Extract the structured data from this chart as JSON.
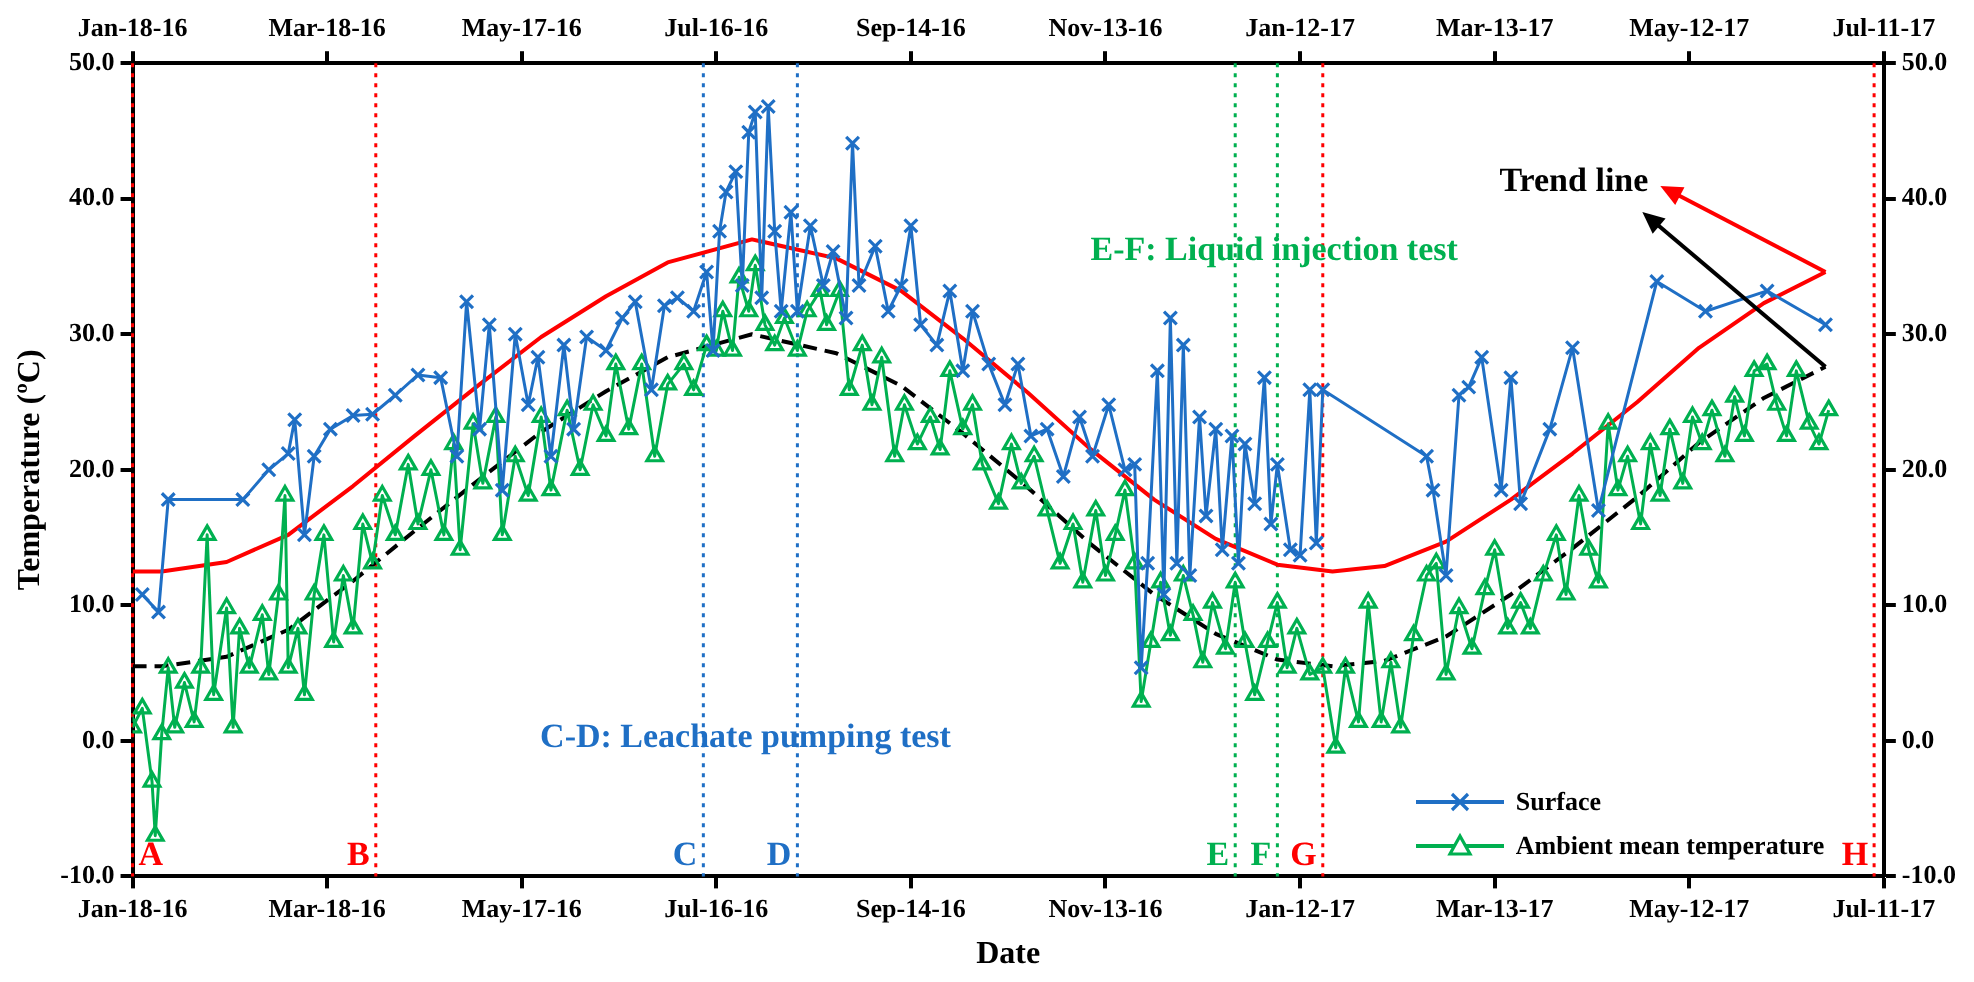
{
  "chart_data": {
    "type": "line",
    "xlabel": "Date",
    "ylabel": "Temperature (ºC)",
    "xlim": [
      "2016-01-18",
      "2017-07-11"
    ],
    "xticks": [
      {
        "value": "2016-01-18",
        "label": "Jan-18-16"
      },
      {
        "value": "2016-03-18",
        "label": "Mar-18-16"
      },
      {
        "value": "2016-05-17",
        "label": "May-17-16"
      },
      {
        "value": "2016-07-16",
        "label": "Jul-16-16"
      },
      {
        "value": "2016-09-14",
        "label": "Sep-14-16"
      },
      {
        "value": "2016-11-13",
        "label": "Nov-13-16"
      },
      {
        "value": "2017-01-12",
        "label": "Jan-12-17"
      },
      {
        "value": "2017-03-13",
        "label": "Mar-13-17"
      },
      {
        "value": "2017-05-12",
        "label": "May-12-17"
      },
      {
        "value": "2017-07-11",
        "label": "Jul-11-17"
      }
    ],
    "x2lim": [
      "2016-01-18",
      "2017-07-11"
    ],
    "x2ticks": [
      {
        "value": "2016-01-18",
        "label": "Jan-18-16"
      },
      {
        "value": "2016-03-18",
        "label": "Mar-18-16"
      },
      {
        "value": "2016-05-17",
        "label": "May-17-16"
      },
      {
        "value": "2016-07-16",
        "label": "Jul-16-16"
      },
      {
        "value": "2016-09-14",
        "label": "Sep-14-16"
      },
      {
        "value": "2016-11-13",
        "label": "Nov-13-16"
      },
      {
        "value": "2017-01-12",
        "label": "Jan-12-17"
      },
      {
        "value": "2017-03-13",
        "label": "Mar-13-17"
      },
      {
        "value": "2017-05-12",
        "label": "May-12-17"
      },
      {
        "value": "2017-07-11",
        "label": "Jul-11-17"
      }
    ],
    "ylim": [
      -10,
      50
    ],
    "yticks": [
      {
        "value": -10,
        "label": "-10.0"
      },
      {
        "value": 0,
        "label": "0.0"
      },
      {
        "value": 10,
        "label": "10.0"
      },
      {
        "value": 20,
        "label": "20.0"
      },
      {
        "value": 30,
        "label": "30.0"
      },
      {
        "value": 40,
        "label": "40.0"
      },
      {
        "value": 50,
        "label": "50.0"
      }
    ],
    "y2lim": [
      -10,
      50
    ],
    "y2ticks": [
      {
        "value": -10,
        "label": "-10.0"
      },
      {
        "value": 0,
        "label": "0.0"
      },
      {
        "value": 10,
        "label": "10.0"
      },
      {
        "value": 20,
        "label": "20.0"
      },
      {
        "value": 30,
        "label": "30.0"
      },
      {
        "value": 40,
        "label": "40.0"
      },
      {
        "value": 50,
        "label": "50.0"
      }
    ],
    "legend": "bottom right",
    "series": [
      {
        "name": "Surface",
        "color": "#1f6fc5",
        "marker": "cross",
        "line_style": "solid",
        "x": [
          "2016-01-21",
          "2016-01-26",
          "2016-01-29",
          "2016-02-21",
          "2016-02-29",
          "2016-03-06",
          "2016-03-08",
          "2016-03-11",
          "2016-03-14",
          "2016-03-19",
          "2016-03-26",
          "2016-04-01",
          "2016-04-08",
          "2016-04-15",
          "2016-04-22",
          "2016-04-27",
          "2016-04-30",
          "2016-05-04",
          "2016-05-07",
          "2016-05-11",
          "2016-05-15",
          "2016-05-19",
          "2016-05-22",
          "2016-05-26",
          "2016-05-30",
          "2016-06-02",
          "2016-06-06",
          "2016-06-12",
          "2016-06-17",
          "2016-06-21",
          "2016-06-26",
          "2016-06-30",
          "2016-07-04",
          "2016-07-09",
          "2016-07-13",
          "2016-07-15",
          "2016-07-17",
          "2016-07-19",
          "2016-07-22",
          "2016-07-24",
          "2016-07-26",
          "2016-07-28",
          "2016-07-30",
          "2016-08-01",
          "2016-08-03",
          "2016-08-05",
          "2016-08-08",
          "2016-08-10",
          "2016-08-14",
          "2016-08-18",
          "2016-08-21",
          "2016-08-25",
          "2016-08-27",
          "2016-08-29",
          "2016-09-03",
          "2016-09-07",
          "2016-09-11",
          "2016-09-14",
          "2016-09-17",
          "2016-09-22",
          "2016-09-26",
          "2016-09-30",
          "2016-10-03",
          "2016-10-08",
          "2016-10-13",
          "2016-10-17",
          "2016-10-21",
          "2016-10-26",
          "2016-10-31",
          "2016-11-05",
          "2016-11-09",
          "2016-11-14",
          "2016-11-19",
          "2016-11-22",
          "2016-11-24",
          "2016-11-26",
          "2016-11-29",
          "2016-12-01",
          "2016-12-03",
          "2016-12-05",
          "2016-12-07",
          "2016-12-09",
          "2016-12-12",
          "2016-12-14",
          "2016-12-17",
          "2016-12-19",
          "2016-12-22",
          "2016-12-24",
          "2016-12-26",
          "2016-12-29",
          "2017-01-01",
          "2017-01-03",
          "2017-01-05",
          "2017-01-09",
          "2017-01-12",
          "2017-01-15",
          "2017-01-17",
          "2017-01-19",
          "2017-02-20",
          "2017-02-22",
          "2017-02-26",
          "2017-03-02",
          "2017-03-05",
          "2017-03-09",
          "2017-03-15",
          "2017-03-18",
          "2017-03-21",
          "2017-03-30",
          "2017-04-06",
          "2017-04-14",
          "2017-05-02",
          "2017-05-17",
          "2017-06-05",
          "2017-06-23"
        ],
        "values": [
          10.8,
          9.5,
          17.8,
          17.8,
          20,
          21.2,
          23.7,
          15.2,
          21,
          23,
          24,
          24.1,
          25.5,
          27,
          26.8,
          21,
          32.4,
          23,
          30.7,
          18.5,
          30,
          24.8,
          28.3,
          21,
          29.2,
          23,
          29.8,
          28.8,
          31.2,
          32.4,
          25.9,
          32.1,
          32.7,
          31.7,
          34.6,
          28.8,
          37.6,
          40.5,
          42,
          33.6,
          44.9,
          46.4,
          32.7,
          46.8,
          37.6,
          31.7,
          39,
          31.7,
          38,
          33.6,
          36.1,
          31.2,
          44.1,
          33.6,
          36.5,
          31.7,
          33.6,
          38,
          30.7,
          29.2,
          33.2,
          27.3,
          31.7,
          27.8,
          24.8,
          27.8,
          22.5,
          23,
          19.5,
          23.9,
          21,
          24.8,
          20,
          20.4,
          5.4,
          13.1,
          27.3,
          10.8,
          31.2,
          13.1,
          29.2,
          12.2,
          23.9,
          16.6,
          23,
          14.1,
          22.5,
          13.1,
          21.9,
          17.5,
          26.8,
          16,
          20.4,
          14.1,
          13.7,
          25.9,
          14.6,
          25.9,
          21,
          18.5,
          12.2,
          25.5,
          26.1,
          28.3,
          18.5,
          26.8,
          17.5,
          23,
          29,
          17,
          33.9,
          31.7,
          33.2,
          30.7
        ]
      },
      {
        "name": "Ambient mean temperature",
        "color": "#00b050",
        "marker": "triangle",
        "line_style": "solid",
        "x": [
          "2016-01-18",
          "2016-01-21",
          "2016-01-24",
          "2016-01-25",
          "2016-01-27",
          "2016-01-29",
          "2016-01-31",
          "2016-02-03",
          "2016-02-06",
          "2016-02-08",
          "2016-02-10",
          "2016-02-12",
          "2016-02-16",
          "2016-02-18",
          "2016-02-20",
          "2016-02-23",
          "2016-02-27",
          "2016-02-29",
          "2016-03-03",
          "2016-03-05",
          "2016-03-06",
          "2016-03-09",
          "2016-03-11",
          "2016-03-14",
          "2016-03-17",
          "2016-03-20",
          "2016-03-23",
          "2016-03-26",
          "2016-03-29",
          "2016-04-01",
          "2016-04-04",
          "2016-04-08",
          "2016-04-12",
          "2016-04-15",
          "2016-04-19",
          "2016-04-23",
          "2016-04-26",
          "2016-04-28",
          "2016-05-02",
          "2016-05-05",
          "2016-05-09",
          "2016-05-11",
          "2016-05-15",
          "2016-05-19",
          "2016-05-23",
          "2016-05-26",
          "2016-05-31",
          "2016-06-04",
          "2016-06-08",
          "2016-06-12",
          "2016-06-15",
          "2016-06-19",
          "2016-06-23",
          "2016-06-27",
          "2016-07-01",
          "2016-07-06",
          "2016-07-09",
          "2016-07-13",
          "2016-07-16",
          "2016-07-18",
          "2016-07-21",
          "2016-07-23",
          "2016-07-26",
          "2016-07-28",
          "2016-07-31",
          "2016-08-03",
          "2016-08-06",
          "2016-08-10",
          "2016-08-13",
          "2016-08-17",
          "2016-08-19",
          "2016-08-23",
          "2016-08-26",
          "2016-08-30",
          "2016-09-02",
          "2016-09-05",
          "2016-09-09",
          "2016-09-12",
          "2016-09-16",
          "2016-09-20",
          "2016-09-23",
          "2016-09-26",
          "2016-09-30",
          "2016-10-03",
          "2016-10-06",
          "2016-10-11",
          "2016-10-15",
          "2016-10-18",
          "2016-10-22",
          "2016-10-26",
          "2016-10-30",
          "2016-11-03",
          "2016-11-06",
          "2016-11-10",
          "2016-11-13",
          "2016-11-16",
          "2016-11-19",
          "2016-11-22",
          "2016-11-24",
          "2016-11-27",
          "2016-11-30",
          "2016-12-03",
          "2016-12-07",
          "2016-12-10",
          "2016-12-13",
          "2016-12-16",
          "2016-12-20",
          "2016-12-23",
          "2016-12-26",
          "2016-12-29",
          "2017-01-02",
          "2017-01-05",
          "2017-01-08",
          "2017-01-11",
          "2017-01-15",
          "2017-01-19",
          "2017-01-23",
          "2017-01-26",
          "2017-01-30",
          "2017-02-02",
          "2017-02-06",
          "2017-02-09",
          "2017-02-12",
          "2017-02-16",
          "2017-02-20",
          "2017-02-23",
          "2017-02-26",
          "2017-03-02",
          "2017-03-06",
          "2017-03-10",
          "2017-03-13",
          "2017-03-17",
          "2017-03-21",
          "2017-03-24",
          "2017-03-28",
          "2017-04-01",
          "2017-04-04",
          "2017-04-08",
          "2017-04-11",
          "2017-04-14",
          "2017-04-17",
          "2017-04-20",
          "2017-04-23",
          "2017-04-27",
          "2017-04-30",
          "2017-05-03",
          "2017-05-06",
          "2017-05-10",
          "2017-05-13",
          "2017-05-16",
          "2017-05-19",
          "2017-05-23",
          "2017-05-26",
          "2017-05-29",
          "2017-06-01",
          "2017-06-05",
          "2017-06-08",
          "2017-06-11",
          "2017-06-14",
          "2017-06-18",
          "2017-06-21",
          "2017-06-24"
        ],
        "values": [
          1,
          2.4,
          -3,
          -7,
          0.5,
          5.4,
          1,
          4.3,
          1.4,
          5.4,
          15.2,
          3.4,
          9.8,
          1,
          8.3,
          5.4,
          9.3,
          4.9,
          10.8,
          18.1,
          5.4,
          8.3,
          3.4,
          10.8,
          15.2,
          7.3,
          12.2,
          8.3,
          16,
          13.1,
          18.1,
          15.2,
          20.4,
          16,
          20,
          15.2,
          21.9,
          14.1,
          23.4,
          19,
          23.9,
          15.2,
          21,
          18.1,
          23.9,
          18.5,
          24.4,
          20,
          24.8,
          22.5,
          27.8,
          23,
          27.8,
          21,
          26.3,
          27.8,
          25.9,
          29.2,
          28.8,
          31.7,
          28.8,
          34.2,
          31.7,
          35.1,
          30.7,
          29.2,
          31.2,
          28.8,
          31.7,
          33.2,
          30.7,
          33.2,
          25.9,
          29.2,
          24.8,
          28.3,
          21,
          24.8,
          21.9,
          23.9,
          21.5,
          27.3,
          23,
          24.8,
          20.4,
          17.5,
          21.9,
          19,
          21,
          17,
          13.1,
          16,
          11.7,
          17,
          12.2,
          15.2,
          18.5,
          13.1,
          2.9,
          7.3,
          11.7,
          7.8,
          12.2,
          9.3,
          5.8,
          10.2,
          6.8,
          11.7,
          7.3,
          3.4,
          7.3,
          10.2,
          5.4,
          8.3,
          4.9,
          5.4,
          -0.5,
          5.4,
          1.4,
          10.2,
          1.4,
          5.8,
          1,
          7.8,
          12.2,
          13.1,
          4.9,
          9.8,
          6.8,
          11.2,
          14.1,
          8.3,
          10.2,
          8.3,
          12.2,
          15.2,
          10.8,
          18.1,
          14.1,
          11.7,
          23.4,
          18.5,
          21,
          16,
          21.9,
          18.1,
          23,
          19,
          23.9,
          21.9,
          24.4,
          21,
          25.4,
          22.5,
          27.3,
          27.8,
          24.8,
          22.5,
          27.3,
          23.4,
          21.9,
          24.4
        ]
      },
      {
        "color": "#ff0000",
        "marker": "none",
        "line_style": "solid",
        "x": [
          "2016-01-18",
          "2016-01-27",
          "2016-02-16",
          "2016-03-06",
          "2016-03-26",
          "2016-04-14",
          "2016-05-04",
          "2016-05-23",
          "2016-06-12",
          "2016-07-01",
          "2016-07-27",
          "2016-08-22",
          "2016-09-11",
          "2016-09-30",
          "2016-10-20",
          "2016-11-08",
          "2016-11-28",
          "2016-12-17",
          "2017-01-05",
          "2017-01-22",
          "2017-02-07",
          "2017-02-26",
          "2017-03-18",
          "2017-04-06",
          "2017-04-26",
          "2017-05-15",
          "2017-06-04",
          "2017-06-23"
        ],
        "values": [
          12.5,
          12.5,
          13.2,
          15.2,
          18.8,
          22.5,
          26.3,
          29.8,
          32.8,
          35.3,
          37,
          35.6,
          33.2,
          29.7,
          25.7,
          21.6,
          17.8,
          14.9,
          13,
          12.5,
          12.9,
          14.7,
          17.8,
          21.2,
          25,
          29,
          32.3,
          34.6
        ]
      },
      {
        "color": "#000000",
        "marker": "none",
        "line_style": "dashed",
        "x": [
          "2016-01-18",
          "2016-01-27",
          "2016-02-16",
          "2016-03-06",
          "2016-03-26",
          "2016-04-14",
          "2016-05-04",
          "2016-05-23",
          "2016-06-12",
          "2016-07-01",
          "2016-07-27",
          "2016-08-22",
          "2016-09-11",
          "2016-09-30",
          "2016-10-20",
          "2016-11-08",
          "2016-11-28",
          "2016-12-17",
          "2017-01-05",
          "2017-01-22",
          "2017-02-07",
          "2017-02-26",
          "2017-03-18",
          "2017-04-06",
          "2017-04-26",
          "2017-05-15",
          "2017-06-04",
          "2017-06-23"
        ],
        "values": [
          5.5,
          5.5,
          6.2,
          8.2,
          11.8,
          15.5,
          19.3,
          22.8,
          25.8,
          28.3,
          30,
          28.6,
          26.2,
          22.7,
          18.7,
          14.6,
          10.8,
          7.9,
          6,
          5.5,
          5.9,
          7.7,
          10.8,
          14.2,
          18,
          22,
          25.3,
          27.6
        ]
      }
    ],
    "ref_lines": [
      {
        "axis": "x",
        "value": "2016-01-18",
        "label": "A",
        "color": "#ff0000",
        "line_style": "dotted"
      },
      {
        "axis": "x",
        "value": "2016-04-02",
        "label": "B",
        "color": "#ff0000",
        "line_style": "dotted"
      },
      {
        "axis": "x",
        "value": "2016-07-12",
        "label": "C",
        "color": "#1f6fc5",
        "line_style": "dotted"
      },
      {
        "axis": "x",
        "value": "2016-08-10",
        "label": "D",
        "color": "#1f6fc5",
        "line_style": "dotted"
      },
      {
        "axis": "x",
        "value": "2016-12-23",
        "label": "E",
        "color": "#00b050",
        "line_style": "dotted"
      },
      {
        "axis": "x",
        "value": "2017-01-05",
        "label": "F",
        "color": "#00b050",
        "line_style": "dotted"
      },
      {
        "axis": "x",
        "value": "2017-01-19",
        "label": "G",
        "color": "#ff0000",
        "line_style": "dotted"
      },
      {
        "axis": "x",
        "value": "2017-07-08",
        "label": "H",
        "color": "#ff0000",
        "line_style": "dotted"
      }
    ],
    "annotations": [
      "C-D: Leachate pumping test",
      {
        "text": "E-F: Liquid injection test",
        "x": "2017-01-04",
        "y": 36.1
      },
      "Trend line"
    ]
  }
}
